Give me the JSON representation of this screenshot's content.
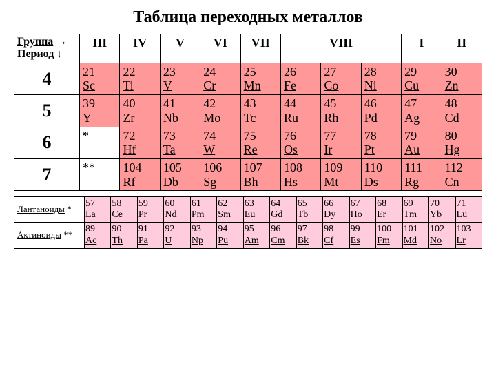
{
  "title": "Таблица переходных металлов",
  "corner": {
    "group": "Группа →",
    "period": "Период ↓"
  },
  "groups": [
    "III",
    "IV",
    "V",
    "VI",
    "VII",
    "VIII",
    "I",
    "II"
  ],
  "viii_span": 3,
  "periods": [
    {
      "label": "4",
      "cells": [
        {
          "n": "21",
          "s": "Sc"
        },
        {
          "n": "22",
          "s": "Ti"
        },
        {
          "n": "23",
          "s": "V"
        },
        {
          "n": "24",
          "s": "Cr"
        },
        {
          "n": "25",
          "s": "Mn"
        },
        {
          "n": "26",
          "s": "Fe"
        },
        {
          "n": "27",
          "s": "Co"
        },
        {
          "n": "28",
          "s": "Ni"
        },
        {
          "n": "29",
          "s": "Cu"
        },
        {
          "n": "30",
          "s": "Zn"
        }
      ]
    },
    {
      "label": "5",
      "cells": [
        {
          "n": "39",
          "s": "Y"
        },
        {
          "n": "40",
          "s": "Zr"
        },
        {
          "n": "41",
          "s": "Nb"
        },
        {
          "n": "42",
          "s": "Mo"
        },
        {
          "n": "43",
          "s": "Tc"
        },
        {
          "n": "44",
          "s": "Ru"
        },
        {
          "n": "45",
          "s": "Rh"
        },
        {
          "n": "46",
          "s": "Pd"
        },
        {
          "n": "47",
          "s": "Ag"
        },
        {
          "n": "48",
          "s": "Cd"
        }
      ]
    },
    {
      "label": "6",
      "cells": [
        {
          "n": "*",
          "s": ""
        },
        {
          "n": "72",
          "s": "Hf"
        },
        {
          "n": "73",
          "s": "Ta"
        },
        {
          "n": "74",
          "s": "W"
        },
        {
          "n": "75",
          "s": "Re"
        },
        {
          "n": "76",
          "s": "Os"
        },
        {
          "n": "77",
          "s": "Ir"
        },
        {
          "n": "78",
          "s": "Pt"
        },
        {
          "n": "79",
          "s": "Au"
        },
        {
          "n": "80",
          "s": "Hg"
        }
      ]
    },
    {
      "label": "7",
      "cells": [
        {
          "n": "**",
          "s": ""
        },
        {
          "n": "104",
          "s": "Rf"
        },
        {
          "n": "105",
          "s": "Db"
        },
        {
          "n": "106",
          "s": "Sg"
        },
        {
          "n": "107",
          "s": "Bh"
        },
        {
          "n": "108",
          "s": "Hs"
        },
        {
          "n": "109",
          "s": "Mt"
        },
        {
          "n": "110",
          "s": "Ds"
        },
        {
          "n": "111",
          "s": "Rg"
        },
        {
          "n": "112",
          "s": "Cn"
        }
      ]
    }
  ],
  "blocks": [
    {
      "label": "Лантаноиды",
      "mark": "*",
      "cells": [
        {
          "n": "57",
          "s": "La"
        },
        {
          "n": "58",
          "s": "Ce"
        },
        {
          "n": "59",
          "s": "Pr"
        },
        {
          "n": "60",
          "s": "Nd"
        },
        {
          "n": "61",
          "s": "Pm"
        },
        {
          "n": "62",
          "s": "Sm"
        },
        {
          "n": "63",
          "s": "Eu"
        },
        {
          "n": "64",
          "s": "Gd"
        },
        {
          "n": "65",
          "s": "Tb"
        },
        {
          "n": "66",
          "s": "Dy"
        },
        {
          "n": "67",
          "s": "Ho"
        },
        {
          "n": "68",
          "s": "Er"
        },
        {
          "n": "69",
          "s": "Tm"
        },
        {
          "n": "70",
          "s": "Yb"
        },
        {
          "n": "71",
          "s": "Lu"
        }
      ]
    },
    {
      "label": "Актиноиды",
      "mark": "**",
      "cells": [
        {
          "n": "89",
          "s": "Ac"
        },
        {
          "n": "90",
          "s": "Th"
        },
        {
          "n": "91",
          "s": "Pa"
        },
        {
          "n": "92",
          "s": "U"
        },
        {
          "n": "93",
          "s": "Np"
        },
        {
          "n": "94",
          "s": "Pu"
        },
        {
          "n": "95",
          "s": "Am"
        },
        {
          "n": "96",
          "s": "Cm"
        },
        {
          "n": "97",
          "s": "Bk"
        },
        {
          "n": "98",
          "s": "Cf"
        },
        {
          "n": "99",
          "s": "Es"
        },
        {
          "n": "100",
          "s": "Fm"
        },
        {
          "n": "101",
          "s": "Md"
        },
        {
          "n": "102",
          "s": "No"
        },
        {
          "n": "103",
          "s": "Lr"
        }
      ]
    }
  ],
  "colors": {
    "main_bg": "#ff9999",
    "block_bg": "#ffccdd",
    "border": "#000000",
    "text": "#000000"
  }
}
